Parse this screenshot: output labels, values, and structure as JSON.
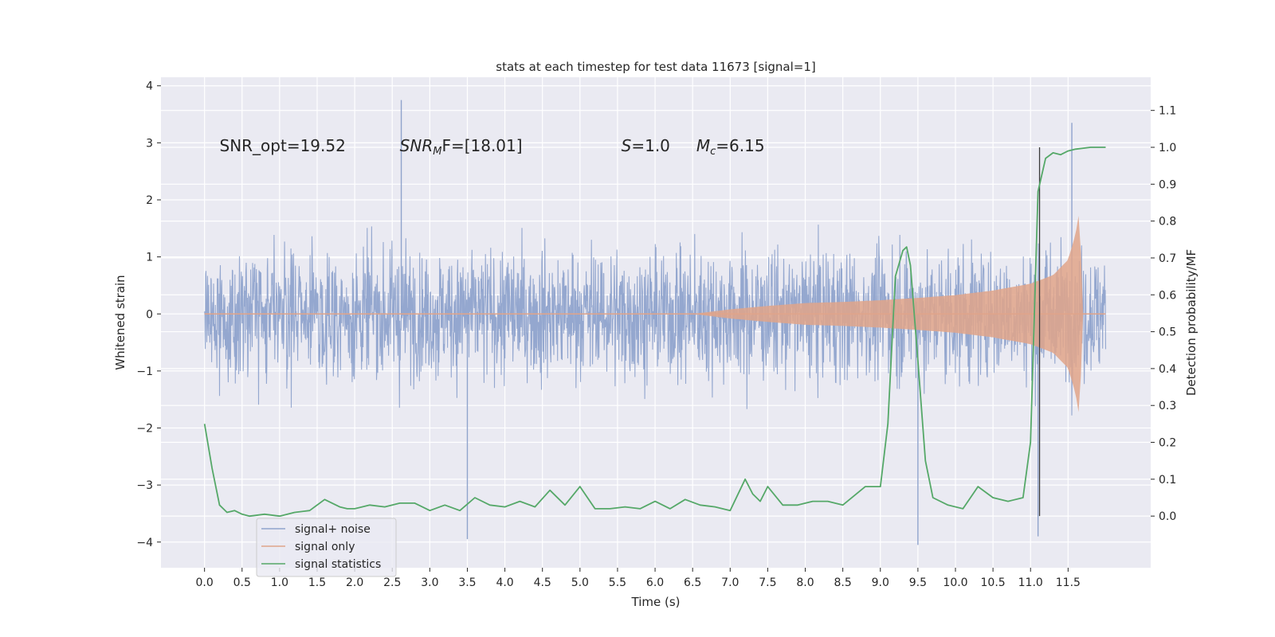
{
  "chart_data": {
    "type": "line",
    "title": "stats at each timestep for test data 11673 [signal=1]",
    "xlabel": "Time (s)",
    "ylabel": "Whitened strain",
    "y2label": "Detection probability/MF",
    "xlim": [
      -0.58,
      12.6
    ],
    "ylim": [
      -4.45,
      4.15
    ],
    "y2lim": [
      -0.14,
      1.19
    ],
    "x_ticks": [
      "0.0",
      "0.5",
      "1.0",
      "1.5",
      "2.0",
      "2.5",
      "3.0",
      "3.5",
      "4.0",
      "4.5",
      "5.0",
      "5.5",
      "6.0",
      "6.5",
      "7.0",
      "7.5",
      "8.0",
      "8.5",
      "9.0",
      "9.5",
      "10.0",
      "10.5",
      "11.0",
      "11.5"
    ],
    "y_ticks": [
      "4",
      "3",
      "2",
      "1",
      "0",
      "−1",
      "−2",
      "−3",
      "−4"
    ],
    "y_tick_values": [
      4,
      3,
      2,
      1,
      0,
      -1,
      -2,
      -3,
      -4
    ],
    "y2_ticks": [
      "1.1",
      "1.0",
      "0.9",
      "0.8",
      "0.7",
      "0.6",
      "0.5",
      "0.4",
      "0.3",
      "0.2",
      "0.1",
      "0.0"
    ],
    "y2_tick_values": [
      1.1,
      1.0,
      0.9,
      0.8,
      0.7,
      0.6,
      0.5,
      0.4,
      0.3,
      0.2,
      0.1,
      0.0
    ],
    "grid": true,
    "legend_position": "lower-left",
    "series": [
      {
        "name": "signal+ noise",
        "color": "#8fa3cc",
        "axis": "left",
        "description": "whitened strain data, roughly ±2 with spikes to ±4",
        "x_range": [
          0.0,
          12.0
        ],
        "peaks": [
          [
            2.62,
            3.75
          ],
          [
            3.5,
            -3.95
          ],
          [
            9.5,
            -4.05
          ],
          [
            11.1,
            -3.9
          ],
          [
            11.55,
            3.35
          ]
        ]
      },
      {
        "name": "signal only",
        "color": "#dd8452",
        "axis": "left",
        "description": "chirp signal envelope growing from ~6.8 s to merger ~11.65 s",
        "envelope_x": [
          0.0,
          6.5,
          7.0,
          7.5,
          8.0,
          8.5,
          9.0,
          9.5,
          10.0,
          10.5,
          11.0,
          11.3,
          11.5,
          11.6,
          11.65,
          11.7,
          12.0
        ],
        "envelope_y": [
          0.0,
          0.0,
          0.08,
          0.14,
          0.19,
          0.21,
          0.24,
          0.28,
          0.33,
          0.41,
          0.53,
          0.68,
          0.95,
          1.4,
          1.8,
          0.0,
          0.0
        ]
      },
      {
        "name": "signal statistics",
        "color": "#55a868",
        "axis": "right",
        "x": [
          0.0,
          0.1,
          0.2,
          0.3,
          0.4,
          0.5,
          0.6,
          0.8,
          1.0,
          1.2,
          1.4,
          1.6,
          1.8,
          1.9,
          2.0,
          2.2,
          2.4,
          2.6,
          2.8,
          3.0,
          3.2,
          3.4,
          3.6,
          3.8,
          4.0,
          4.2,
          4.4,
          4.6,
          4.8,
          5.0,
          5.2,
          5.4,
          5.6,
          5.8,
          6.0,
          6.2,
          6.4,
          6.6,
          6.8,
          7.0,
          7.2,
          7.3,
          7.4,
          7.5,
          7.7,
          7.9,
          8.1,
          8.3,
          8.5,
          8.8,
          9.0,
          9.1,
          9.2,
          9.3,
          9.35,
          9.4,
          9.5,
          9.6,
          9.7,
          9.9,
          10.1,
          10.3,
          10.5,
          10.7,
          10.9,
          11.0,
          11.1,
          11.2,
          11.3,
          11.4,
          11.5,
          11.6,
          11.8,
          12.0
        ],
        "y": [
          0.25,
          0.13,
          0.03,
          0.01,
          0.015,
          0.005,
          0.0,
          0.005,
          0.0,
          0.01,
          0.015,
          0.045,
          0.025,
          0.02,
          0.02,
          0.03,
          0.025,
          0.035,
          0.035,
          0.015,
          0.03,
          0.015,
          0.05,
          0.03,
          0.025,
          0.04,
          0.025,
          0.07,
          0.03,
          0.08,
          0.02,
          0.02,
          0.025,
          0.02,
          0.04,
          0.02,
          0.045,
          0.03,
          0.025,
          0.015,
          0.1,
          0.06,
          0.04,
          0.08,
          0.03,
          0.03,
          0.04,
          0.04,
          0.03,
          0.08,
          0.08,
          0.25,
          0.65,
          0.72,
          0.73,
          0.68,
          0.42,
          0.15,
          0.05,
          0.03,
          0.02,
          0.08,
          0.05,
          0.04,
          0.05,
          0.2,
          0.88,
          0.97,
          0.985,
          0.98,
          0.99,
          0.995,
          1.0,
          1.0
        ]
      }
    ],
    "vline_x": 11.12,
    "annotations": [
      {
        "text": "SNR_opt=19.52",
        "x": 0.2,
        "y": 2.85
      },
      {
        "main": "SNR",
        "sub": "M",
        "rest": "F=[18.01]",
        "x": 2.6,
        "y": 2.85
      },
      {
        "main": "S",
        "rest": "=1.0",
        "x": 5.55,
        "y": 2.85
      },
      {
        "main": "M",
        "sub": "c",
        "rest": "=6.15",
        "x": 6.55,
        "y": 2.85
      }
    ]
  }
}
